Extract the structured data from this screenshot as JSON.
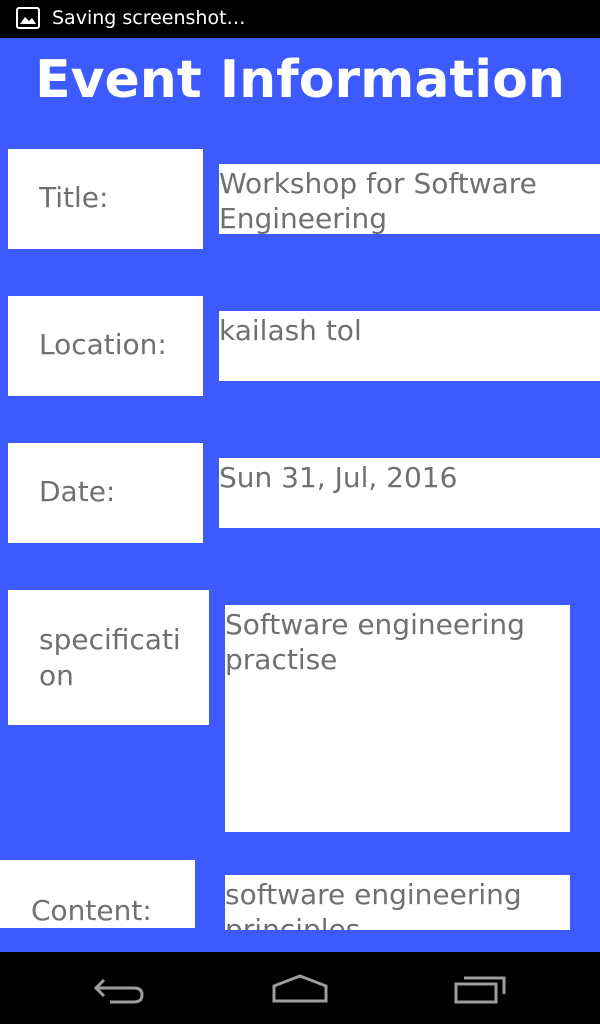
{
  "status_bar": {
    "icon": "image-icon",
    "text": "Saving screenshot…"
  },
  "page": {
    "title": "Event Information",
    "background_color": "#3D5AFE"
  },
  "fields": {
    "title": {
      "label": "Title:",
      "value": "Workshop for Software Engineering"
    },
    "location": {
      "label": "Location:",
      "value": "kailash tol"
    },
    "date": {
      "label": "Date:",
      "value": "Sun 31, Jul, 2016"
    },
    "specification": {
      "label": "specification",
      "value": "Software engineering practise"
    },
    "content": {
      "label": "Content:",
      "value": "software engineering principles"
    }
  },
  "nav_bar": {
    "buttons": [
      "back-icon",
      "home-icon",
      "recent-apps-icon"
    ]
  }
}
